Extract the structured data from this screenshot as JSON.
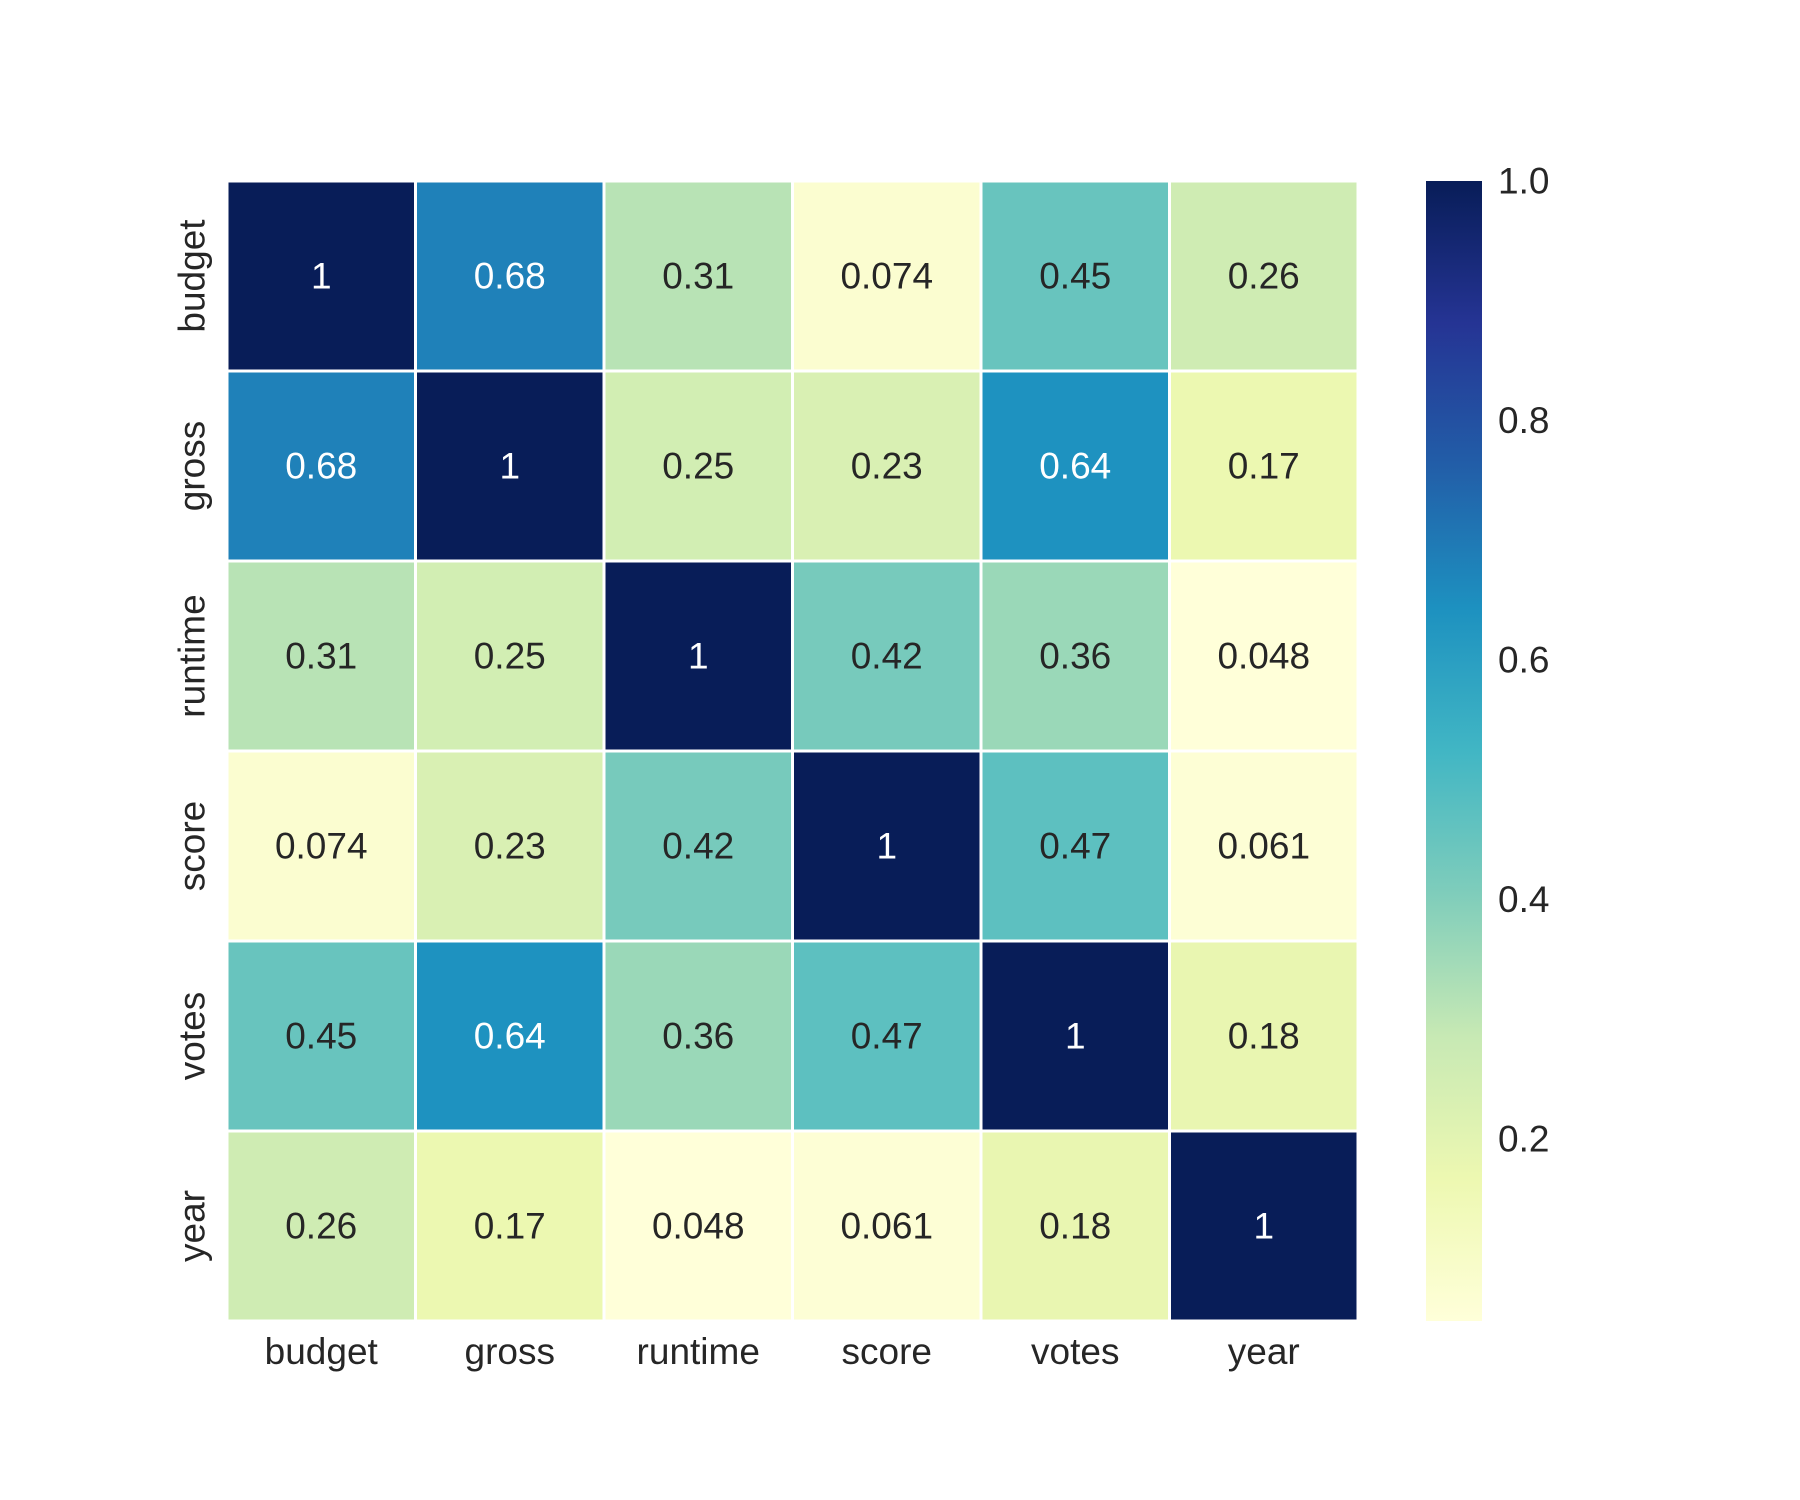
{
  "chart_data": {
    "type": "heatmap",
    "title": "",
    "xlabel": "",
    "ylabel": "",
    "x_categories": [
      "budget",
      "gross",
      "runtime",
      "score",
      "votes",
      "year"
    ],
    "y_categories": [
      "budget",
      "gross",
      "runtime",
      "score",
      "votes",
      "year"
    ],
    "values": [
      [
        1,
        0.68,
        0.31,
        0.074,
        0.45,
        0.26
      ],
      [
        0.68,
        1,
        0.25,
        0.23,
        0.64,
        0.17
      ],
      [
        0.31,
        0.25,
        1,
        0.42,
        0.36,
        0.048
      ],
      [
        0.074,
        0.23,
        0.42,
        1,
        0.47,
        0.061
      ],
      [
        0.45,
        0.64,
        0.36,
        0.47,
        1,
        0.18
      ],
      [
        0.26,
        0.17,
        0.048,
        0.061,
        0.18,
        1
      ]
    ],
    "annotations": [
      [
        "1",
        "0.68",
        "0.31",
        "0.074",
        "0.45",
        "0.26"
      ],
      [
        "0.68",
        "1",
        "0.25",
        "0.23",
        "0.64",
        "0.17"
      ],
      [
        "0.31",
        "0.25",
        "1",
        "0.42",
        "0.36",
        "0.048"
      ],
      [
        "0.074",
        "0.23",
        "0.42",
        "1",
        "0.47",
        "0.061"
      ],
      [
        "0.45",
        "0.64",
        "0.36",
        "0.47",
        "1",
        "0.18"
      ],
      [
        "0.26",
        "0.17",
        "0.048",
        "0.061",
        "0.18",
        "1"
      ]
    ],
    "colormap": "YlGnBu",
    "color_range": [
      0.048,
      1.0
    ],
    "colorbar": {
      "ticks": [
        0.2,
        0.4,
        0.6,
        0.8,
        1.0
      ],
      "tick_labels": [
        "0.2",
        "0.4",
        "0.6",
        "0.8",
        "1.0"
      ],
      "placement": "right"
    },
    "grid_lines_color": "#ffffff"
  }
}
